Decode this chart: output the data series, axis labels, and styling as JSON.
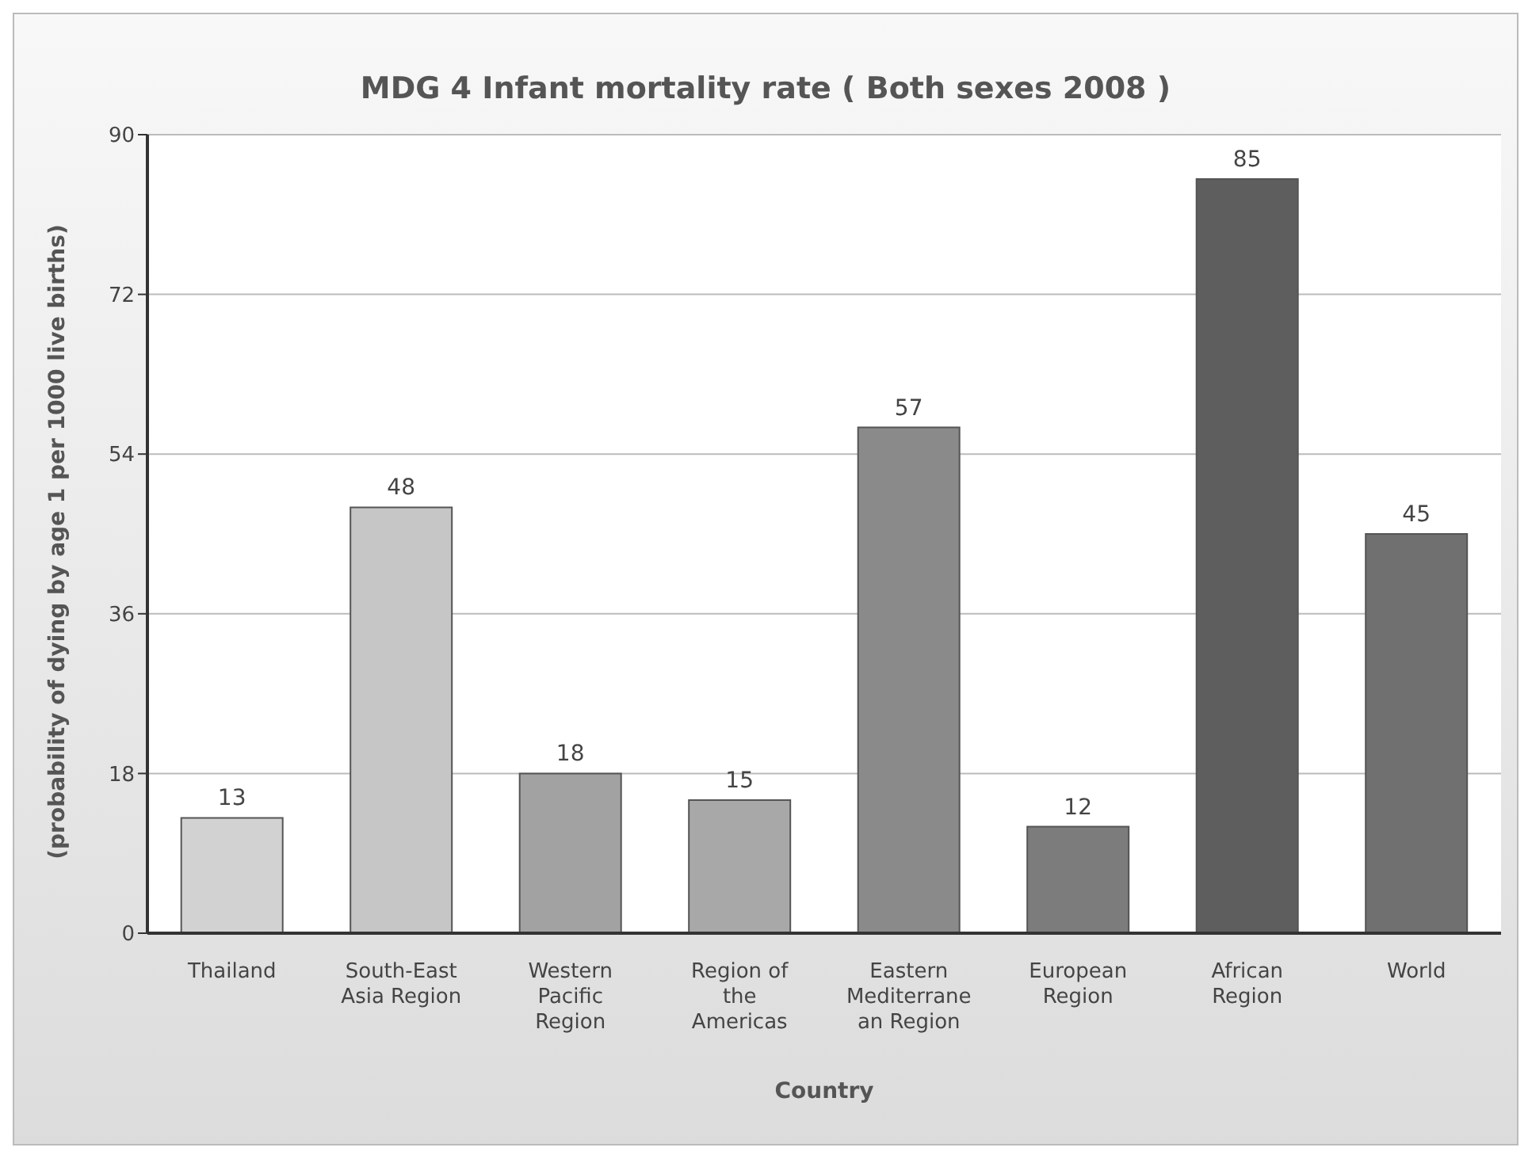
{
  "chart_data": {
    "type": "bar",
    "title": "MDG 4 Infant mortality rate ( Both sexes 2008 )",
    "xlabel": "Country",
    "ylabel": "(probability of dying by age 1 per 1000 live births)",
    "categories": [
      "Thailand",
      "South-East Asia Region",
      "Western Pacific Region",
      "Region of the Americas",
      "Eastern Mediterranean Region",
      "European Region",
      "African Region",
      "World"
    ],
    "values": [
      13,
      48,
      18,
      15,
      57,
      12,
      85,
      45
    ],
    "colors": [
      "#d2d2d2",
      "#c6c6c6",
      "#a2a2a2",
      "#a8a8a8",
      "#8a8a8a",
      "#7c7c7c",
      "#5e5e5e",
      "#707070"
    ],
    "ylim": [
      0,
      90
    ],
    "yticks": [
      0,
      18,
      36,
      54,
      72,
      90
    ],
    "grid": "y",
    "data_labels": true
  }
}
